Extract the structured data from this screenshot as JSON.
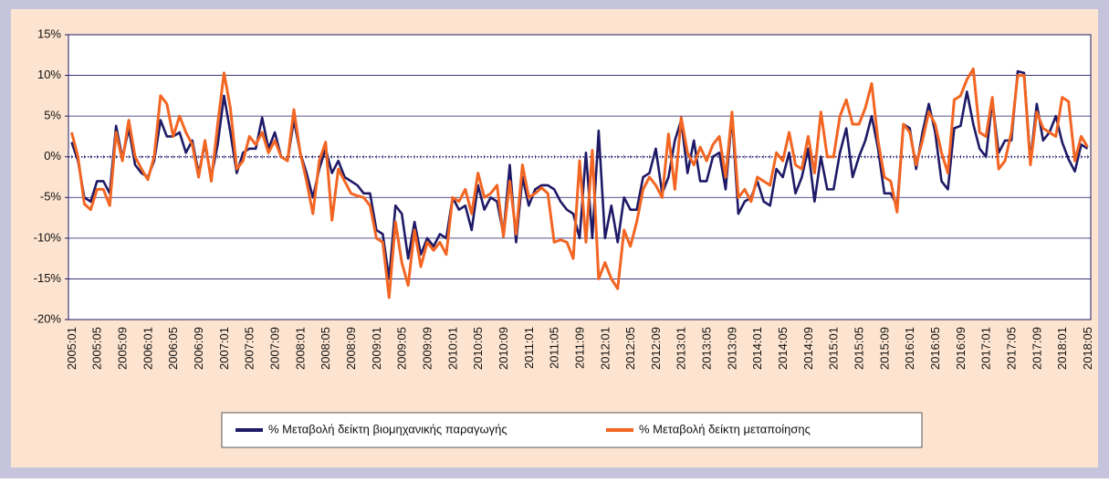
{
  "chart_data": {
    "type": "line",
    "categories": [
      "2005:01",
      null,
      null,
      null,
      "2005:05",
      null,
      null,
      null,
      "2005:09",
      null,
      null,
      null,
      "2006:01",
      null,
      null,
      null,
      "2006:05",
      null,
      null,
      null,
      "2006:09",
      null,
      null,
      null,
      "2007:01",
      null,
      null,
      null,
      "2007:05",
      null,
      null,
      null,
      "2007:09",
      null,
      null,
      null,
      "2008:01",
      null,
      null,
      null,
      "2008:05",
      null,
      null,
      null,
      "2008:09",
      null,
      null,
      null,
      "2009:01",
      null,
      null,
      null,
      "2009:05",
      null,
      null,
      null,
      "2009:09",
      null,
      null,
      null,
      "2010:01",
      null,
      null,
      null,
      "2010:05",
      null,
      null,
      null,
      "2010:09",
      null,
      null,
      null,
      "2011:01",
      null,
      null,
      null,
      "2011:05",
      null,
      null,
      null,
      "2011:09",
      null,
      null,
      null,
      "2012:01",
      null,
      null,
      null,
      "2012:05",
      null,
      null,
      null,
      "2012:09",
      null,
      null,
      null,
      "2013:01",
      null,
      null,
      null,
      "2013:05",
      null,
      null,
      null,
      "2013:09",
      null,
      null,
      null,
      "2014:01",
      null,
      null,
      null,
      "2014:05",
      null,
      null,
      null,
      "2014:09",
      null,
      null,
      null,
      "2015:01",
      null,
      null,
      null,
      "2015:05",
      null,
      null,
      null,
      "2015:09",
      null,
      null,
      null,
      "2016:01",
      null,
      null,
      null,
      "2016:05",
      null,
      null,
      null,
      "2016:09",
      null,
      null,
      null,
      "2017:01",
      null,
      null,
      null,
      "2017:05",
      null,
      null,
      null,
      "2017:09",
      null,
      null,
      null,
      "2018:01",
      null,
      null,
      null,
      "2018:05"
    ],
    "series": [
      {
        "name": "% Μεταβολή δείκτη βιομηχανικής παραγωγής",
        "color": "#1f1a66",
        "values": [
          1.8,
          -0.5,
          -5.0,
          -5.5,
          -3.0,
          -3.0,
          -4.5,
          3.8,
          -0.2,
          3.5,
          -1.0,
          -2.0,
          -2.5,
          -0.5,
          4.5,
          2.5,
          2.5,
          3.0,
          0.5,
          2.0,
          -2.0,
          1.5,
          -2.5,
          1.5,
          7.5,
          3.0,
          -2.0,
          0.5,
          1.0,
          1.0,
          4.8,
          1.0,
          3.0,
          0,
          -0.5,
          4.5,
          0.5,
          -2.0,
          -5.0,
          -1.5,
          1.0,
          -2.0,
          -0.5,
          -2.5,
          -3.0,
          -3.5,
          -4.5,
          -4.5,
          -9.0,
          -9.5,
          -15.0,
          -6.0,
          -7.0,
          -12.5,
          -8.0,
          -12.0,
          -10.0,
          -11.0,
          -9.5,
          -10.0,
          -5.0,
          -6.5,
          -6.0,
          -9.0,
          -3.5,
          -6.5,
          -5.0,
          -5.5,
          -9.5,
          -1.0,
          -10.5,
          -2.5,
          -6.0,
          -4.0,
          -3.5,
          -3.5,
          -4.0,
          -5.5,
          -6.5,
          -7.0,
          -10.0,
          0.5,
          -10.0,
          3.2,
          -10.0,
          -6.0,
          -10.5,
          -5.0,
          -6.5,
          -6.5,
          -2.5,
          -2.0,
          1.0,
          -4.5,
          -2.5,
          2.0,
          4.5,
          -2.0,
          2.0,
          -3.0,
          -3.0,
          0,
          0.5,
          -4.0,
          5.0,
          -7.0,
          -5.5,
          -5.0,
          -3.0,
          -5.5,
          -6.0,
          -1.5,
          -2.5,
          0.5,
          -4.5,
          -2.5,
          1.0,
          -5.5,
          0,
          -4.0,
          -4.0,
          0.5,
          3.5,
          -2.5,
          0,
          2.0,
          5.0,
          1.0,
          -4.5,
          -4.5,
          -6.0,
          4.0,
          3.5,
          -1.5,
          3.0,
          6.5,
          3.0,
          -3.0,
          -4.0,
          3.5,
          3.8,
          8.0,
          4.0,
          1.0,
          0,
          7.0,
          0.5,
          2.0,
          2.0,
          10.5,
          10.3,
          -0.5,
          6.5,
          2.0,
          3.0,
          5.0,
          1.8,
          -0.3,
          -1.8,
          1.5,
          1.0
        ]
      },
      {
        "name": "% Μεταβολή δείκτη μεταποίησης",
        "color": "#f26522",
        "values": [
          3.0,
          0,
          -5.8,
          -6.5,
          -4.0,
          -4.0,
          -6.0,
          3.0,
          -0.5,
          4.5,
          0,
          -1.5,
          -2.8,
          0,
          7.5,
          6.5,
          2.5,
          5.0,
          3.0,
          1.5,
          -2.5,
          2.0,
          -3.0,
          4.0,
          10.3,
          6.0,
          -1.5,
          -0.5,
          2.5,
          1.5,
          3.0,
          0.5,
          2.0,
          0,
          -0.5,
          5.8,
          0.5,
          -3.0,
          -7.0,
          -0.5,
          1.8,
          -7.8,
          -1.5,
          -3.0,
          -4.5,
          -4.8,
          -5.0,
          -6.0,
          -10.0,
          -10.5,
          -17.3,
          -8.0,
          -13.0,
          -15.8,
          -9.0,
          -13.5,
          -10.5,
          -11.5,
          -10.5,
          -12.0,
          -5.0,
          -5.5,
          -4.0,
          -7.0,
          -2.0,
          -5.0,
          -4.5,
          -3.5,
          -9.8,
          -3.0,
          -9.5,
          -1.0,
          -5.0,
          -4.5,
          -3.8,
          -4.5,
          -10.5,
          -10.2,
          -10.5,
          -12.5,
          -0.5,
          -10.5,
          0.8,
          -15.0,
          -13.0,
          -15.0,
          -16.2,
          -9.0,
          -11.0,
          -8.0,
          -4.0,
          -2.5,
          -3.5,
          -5.0,
          2.8,
          -4.0,
          4.8,
          0.5,
          -1.0,
          1.2,
          -0.5,
          1.5,
          2.5,
          -2.5,
          5.5,
          -5.0,
          -4.0,
          -5.5,
          -2.5,
          -3.0,
          -3.5,
          0.5,
          -0.5,
          3.0,
          -1.0,
          -1.5,
          2.5,
          -2.0,
          5.5,
          0,
          0,
          5.0,
          7.0,
          4.0,
          4.0,
          6.0,
          9.0,
          2.0,
          -2.5,
          -3.0,
          -6.8,
          4.0,
          3.0,
          -1.0,
          2.0,
          5.5,
          4.0,
          0.5,
          -2.0,
          7.0,
          7.5,
          9.5,
          10.8,
          3.0,
          2.5,
          7.3,
          -1.5,
          -0.5,
          3.0,
          10.0,
          10.0,
          -1.0,
          5.5,
          3.5,
          3.0,
          2.5,
          7.3,
          6.8,
          -0.5,
          2.5,
          1.2
        ]
      }
    ],
    "ylim": [
      -20,
      15
    ],
    "yticks": [
      {
        "value": -20,
        "label": "-20%"
      },
      {
        "value": -15,
        "label": "-15%"
      },
      {
        "value": -10,
        "label": "-10%"
      },
      {
        "value": -5,
        "label": "-5%"
      },
      {
        "value": 0,
        "label": "0%"
      },
      {
        "value": 5,
        "label": "5%"
      },
      {
        "value": 10,
        "label": "10%"
      },
      {
        "value": 15,
        "label": "15%"
      }
    ],
    "grid": true,
    "legend": "bottom"
  }
}
